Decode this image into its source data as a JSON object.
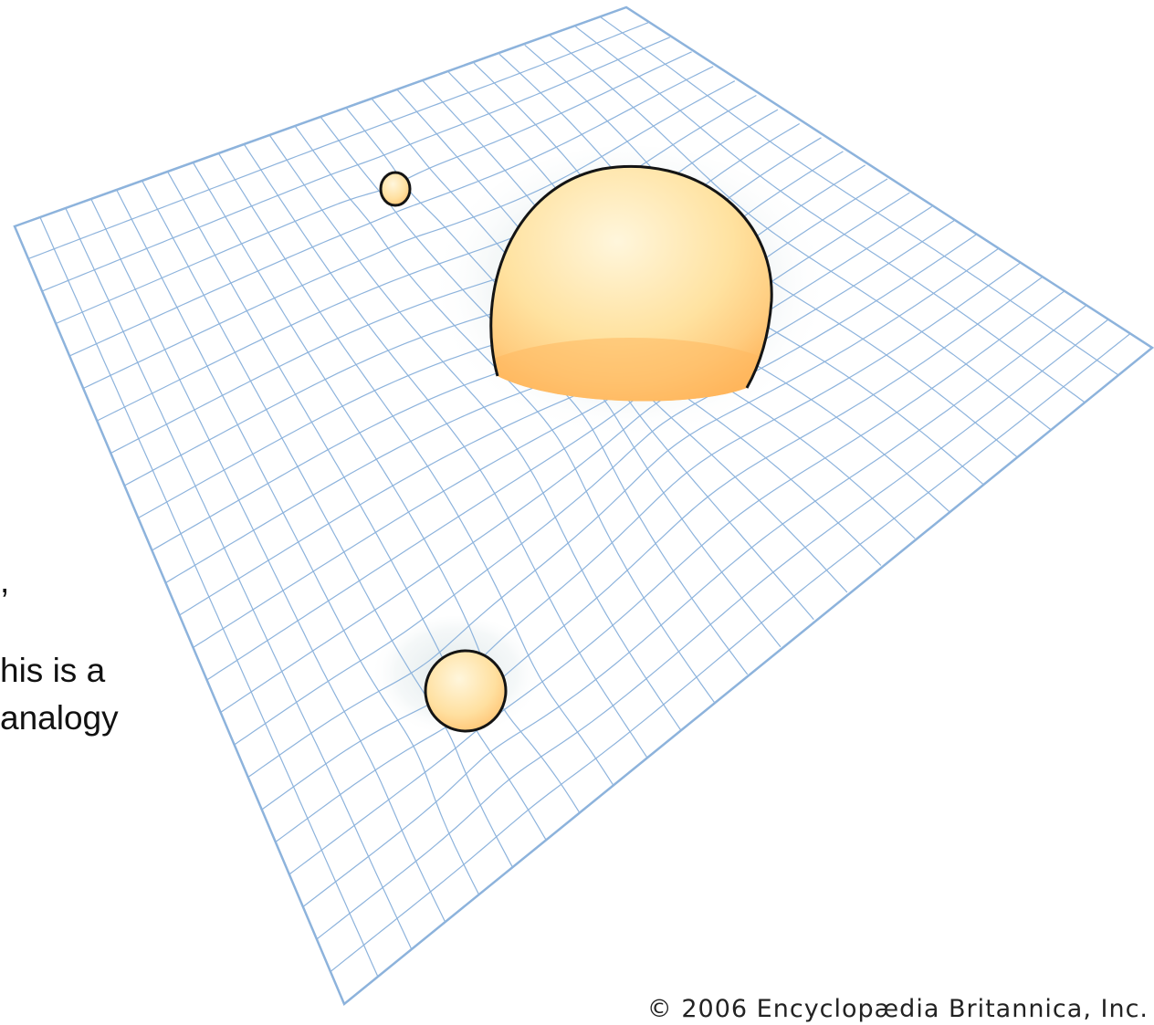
{
  "caption_fragments": {
    "line1": ",",
    "line2": "his is a",
    "line3": " analogy"
  },
  "copyright": "© 2006 Encyclopædia Britannica, Inc.",
  "colors": {
    "grid_line": "#8db3dc",
    "sheet_fill": "#ffffff",
    "well_shadow": "#dfe8ea",
    "sphere_light": "#fff3d4",
    "sphere_mid": "#ffe3a6",
    "sphere_dark": "#ffbf66",
    "outline": "#141414"
  },
  "spheres": [
    {
      "name": "large-sphere",
      "size": "large"
    },
    {
      "name": "small-sphere",
      "size": "small"
    },
    {
      "name": "medium-sphere",
      "size": "medium"
    }
  ]
}
